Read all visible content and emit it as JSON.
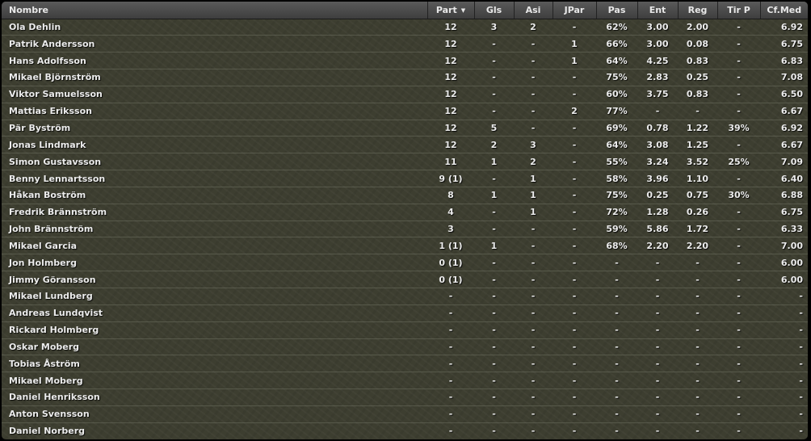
{
  "columns": [
    {
      "key": "name",
      "label": "Nombre"
    },
    {
      "key": "part",
      "label": "Part"
    },
    {
      "key": "gls",
      "label": "Gls"
    },
    {
      "key": "asi",
      "label": "Asi"
    },
    {
      "key": "jpar",
      "label": "JPar"
    },
    {
      "key": "pas",
      "label": "Pas"
    },
    {
      "key": "ent",
      "label": "Ent"
    },
    {
      "key": "reg",
      "label": "Reg"
    },
    {
      "key": "tir",
      "label": "Tir P"
    },
    {
      "key": "cf",
      "label": "Cf.Med"
    }
  ],
  "sort_column": "part",
  "sort_icon": "sort-desc-icon",
  "sort_glyph": "▼",
  "rows": [
    [
      "Ola Dehlin",
      "12",
      "3",
      "2",
      "-",
      "62%",
      "3.00",
      "2.00",
      "-",
      "6.92"
    ],
    [
      "Patrik Andersson",
      "12",
      "-",
      "-",
      "1",
      "66%",
      "3.00",
      "0.08",
      "-",
      "6.75"
    ],
    [
      "Hans Adolfsson",
      "12",
      "-",
      "-",
      "1",
      "64%",
      "4.25",
      "0.83",
      "-",
      "6.83"
    ],
    [
      "Mikael Björnström",
      "12",
      "-",
      "-",
      "-",
      "75%",
      "2.83",
      "0.25",
      "-",
      "7.08"
    ],
    [
      "Viktor Samuelsson",
      "12",
      "-",
      "-",
      "-",
      "60%",
      "3.75",
      "0.83",
      "-",
      "6.50"
    ],
    [
      "Mattias Eriksson",
      "12",
      "-",
      "-",
      "2",
      "77%",
      "-",
      "-",
      "-",
      "6.67"
    ],
    [
      "Pär Byström",
      "12",
      "5",
      "-",
      "-",
      "69%",
      "0.78",
      "1.22",
      "39%",
      "6.92"
    ],
    [
      "Jonas Lindmark",
      "12",
      "2",
      "3",
      "-",
      "64%",
      "3.08",
      "1.25",
      "-",
      "6.67"
    ],
    [
      "Simon Gustavsson",
      "11",
      "1",
      "2",
      "-",
      "55%",
      "3.24",
      "3.52",
      "25%",
      "7.09"
    ],
    [
      "Benny Lennartsson",
      "9 (1)",
      "-",
      "1",
      "-",
      "58%",
      "3.96",
      "1.10",
      "-",
      "6.40"
    ],
    [
      "Håkan Boström",
      "8",
      "1",
      "1",
      "-",
      "75%",
      "0.25",
      "0.75",
      "30%",
      "6.88"
    ],
    [
      "Fredrik Brännström",
      "4",
      "-",
      "1",
      "-",
      "72%",
      "1.28",
      "0.26",
      "-",
      "6.75"
    ],
    [
      "John Brännström",
      "3",
      "-",
      "-",
      "-",
      "59%",
      "5.86",
      "1.72",
      "-",
      "6.33"
    ],
    [
      "Mikael Garcia",
      "1 (1)",
      "1",
      "-",
      "-",
      "68%",
      "2.20",
      "2.20",
      "-",
      "7.00"
    ],
    [
      "Jon Holmberg",
      "0 (1)",
      "-",
      "-",
      "-",
      "-",
      "-",
      "-",
      "-",
      "6.00"
    ],
    [
      "Jimmy Göransson",
      "0 (1)",
      "-",
      "-",
      "-",
      "-",
      "-",
      "-",
      "-",
      "6.00"
    ],
    [
      "Mikael Lundberg",
      "-",
      "-",
      "-",
      "-",
      "-",
      "-",
      "-",
      "-",
      "-"
    ],
    [
      "Andreas Lundqvist",
      "-",
      "-",
      "-",
      "-",
      "-",
      "-",
      "-",
      "-",
      "-"
    ],
    [
      "Rickard Holmberg",
      "-",
      "-",
      "-",
      "-",
      "-",
      "-",
      "-",
      "-",
      "-"
    ],
    [
      "Oskar Moberg",
      "-",
      "-",
      "-",
      "-",
      "-",
      "-",
      "-",
      "-",
      "-"
    ],
    [
      "Tobias Åström",
      "-",
      "-",
      "-",
      "-",
      "-",
      "-",
      "-",
      "-",
      "-"
    ],
    [
      "Mikael Moberg",
      "-",
      "-",
      "-",
      "-",
      "-",
      "-",
      "-",
      "-",
      "-"
    ],
    [
      "Daniel Henriksson",
      "-",
      "-",
      "-",
      "-",
      "-",
      "-",
      "-",
      "-",
      "-"
    ],
    [
      "Anton Svensson",
      "-",
      "-",
      "-",
      "-",
      "-",
      "-",
      "-",
      "-",
      "-"
    ],
    [
      "Daniel Norberg",
      "-",
      "-",
      "-",
      "-",
      "-",
      "-",
      "-",
      "-",
      "-"
    ]
  ]
}
